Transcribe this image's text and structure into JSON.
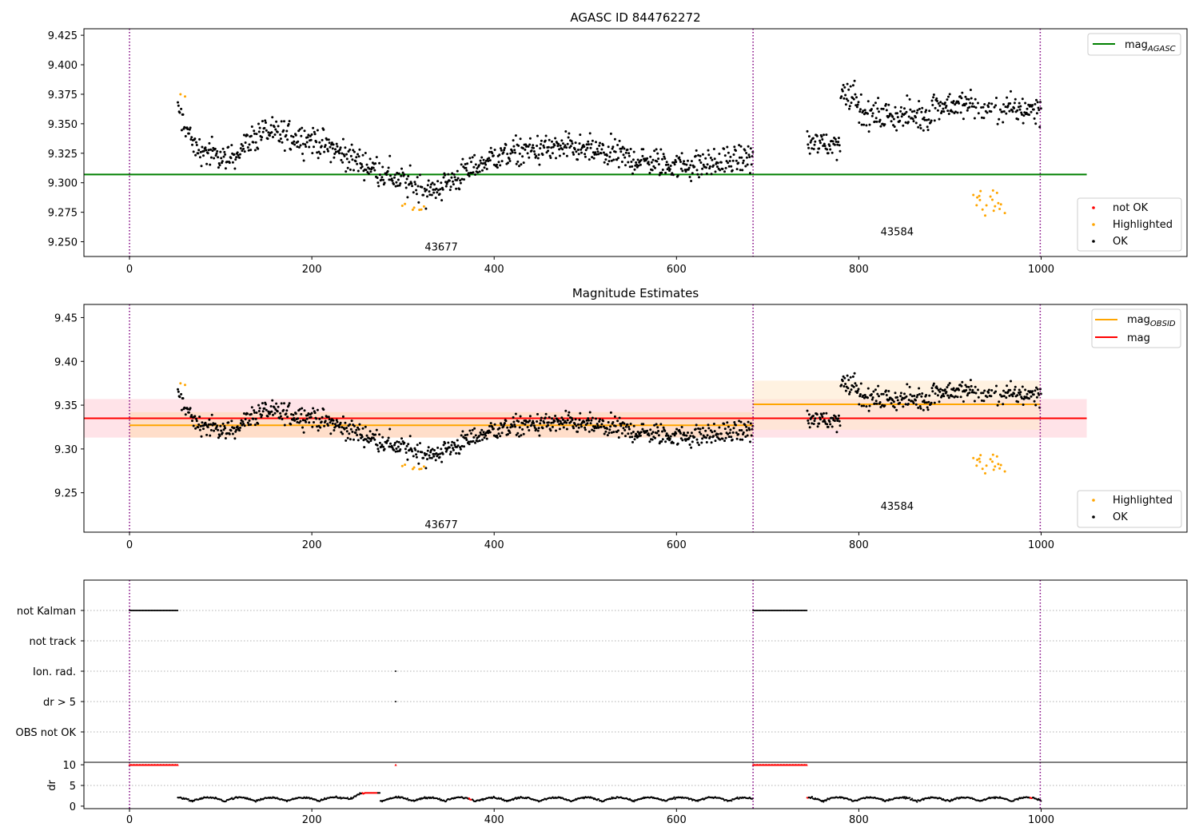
{
  "chart_data": [
    {
      "type": "scatter",
      "title": "AGASC ID 844762272",
      "xlim": [
        -50,
        1160
      ],
      "ylim": [
        9.2375,
        9.4305
      ],
      "xticks": [
        0,
        200,
        400,
        600,
        800,
        1000
      ],
      "xtick_labels": [
        "0",
        "200",
        "400",
        "600",
        "800",
        "1000"
      ],
      "yticks": [
        9.25,
        9.275,
        9.3,
        9.325,
        9.35,
        9.375,
        9.4,
        9.425
      ],
      "ytick_labels": [
        "9.250",
        "9.275",
        "9.300",
        "9.325",
        "9.350",
        "9.375",
        "9.400",
        "9.425"
      ],
      "obsid_boundaries": [
        0,
        684,
        999
      ],
      "obsid_labels": [
        {
          "text": "43677",
          "x": 342,
          "y": 9.246
        },
        {
          "text": "43584",
          "x": 842,
          "y": 9.259
        }
      ],
      "lines": [
        {
          "name": "mag",
          "name_sub": "AGASC",
          "y": 9.307,
          "x_range": [
            -50,
            1050
          ],
          "color": "#008000"
        }
      ],
      "legend_location": "upper right",
      "legend_scatter_location": "lower right",
      "legend_scatter": [
        {
          "name": "not OK",
          "color": "#ff0000"
        },
        {
          "name": "Highlighted",
          "color": "#ffa500"
        },
        {
          "name": "OK",
          "color": "#000000"
        }
      ],
      "series_rule": "OK and Highlighted points are generated from the segment mean-level curve below plus noise; Highlighted points are the low dips marked orange."
    },
    {
      "type": "scatter",
      "title": "Magnitude Estimates",
      "xlim": [
        -50,
        1160
      ],
      "ylim": [
        9.205,
        9.465
      ],
      "xticks": [
        0,
        200,
        400,
        600,
        800,
        1000
      ],
      "xtick_labels": [
        "0",
        "200",
        "400",
        "600",
        "800",
        "1000"
      ],
      "yticks": [
        9.25,
        9.3,
        9.35,
        9.4,
        9.45
      ],
      "ytick_labels": [
        "9.25",
        "9.30",
        "9.35",
        "9.40",
        "9.45"
      ],
      "obsid_boundaries": [
        0,
        684,
        999
      ],
      "obsid_labels": [
        {
          "text": "43677",
          "x": 342,
          "y": 9.214
        },
        {
          "text": "43584",
          "x": 842,
          "y": 9.235
        }
      ],
      "bands": [
        {
          "color": "#ffc0cb",
          "opacity": 0.45,
          "x_range": [
            -50,
            1050
          ],
          "y_range": [
            9.313,
            9.357
          ]
        },
        {
          "color": "#ffdab0",
          "opacity": 0.55,
          "x_range": [
            0,
            684
          ],
          "y_range": [
            9.313,
            9.342
          ]
        },
        {
          "color": "#ffe8c8",
          "opacity": 0.55,
          "x_range": [
            684,
            999
          ],
          "y_range": [
            9.322,
            9.378
          ]
        }
      ],
      "lines": [
        {
          "name": "mag",
          "name_sub": "OBSID",
          "color": "#ffa500",
          "segments": [
            {
              "x": [
                0,
                684
              ],
              "y": 9.327
            },
            {
              "x": [
                684,
                999
              ],
              "y": 9.351
            }
          ]
        },
        {
          "name": "mag",
          "color": "#ff0000",
          "segments": [
            {
              "x": [
                -50,
                1050
              ],
              "y": 9.335
            }
          ]
        }
      ],
      "legend_location": "upper right",
      "legend_scatter_location": "lower right",
      "legend_scatter": [
        {
          "name": "Highlighted",
          "color": "#ffa500"
        },
        {
          "name": "OK",
          "color": "#000000"
        }
      ]
    },
    {
      "type": "scatter",
      "title": "",
      "categories": [
        "not Kalman",
        "not track",
        "Ion. rad.",
        "dr > 5",
        "OBS not OK"
      ],
      "xlim": [
        -50,
        1160
      ],
      "flags": {
        "not Kalman": [
          [
            0,
            53
          ],
          [
            684,
            743
          ]
        ],
        "not track": [],
        "Ion. rad.": [
          [
            292,
            292
          ]
        ],
        "dr > 5": [
          [
            292,
            292
          ]
        ],
        "OBS not OK": []
      }
    },
    {
      "type": "line",
      "xlabel": "",
      "ylabel": "dr",
      "xlim": [
        -50,
        1160
      ],
      "ylim": [
        -0.6,
        10.6
      ],
      "xticks": [
        0,
        200,
        400,
        600,
        800,
        1000
      ],
      "xtick_labels": [
        "0",
        "200",
        "400",
        "600",
        "800",
        "1000"
      ],
      "yticks": [
        0,
        5,
        10
      ],
      "ytick_labels": [
        "0",
        "5",
        "10"
      ],
      "dr_clipped_value": 10,
      "dr_clipped_ranges": [
        [
          0,
          53
        ],
        [
          292,
          292
        ],
        [
          684,
          743
        ]
      ],
      "dr_red_ranges": [
        [
          255,
          272
        ],
        [
          372,
          376
        ],
        [
          743,
          745
        ],
        [
          988,
          990
        ]
      ],
      "dr_rule": "dr values between 0 and 3 pixels shown as small black points, gaps where data is missing"
    }
  ],
  "colors": {
    "ok": "#000000",
    "highlighted": "#ffa500",
    "not_ok": "#ff0000",
    "agasc_line": "#008000",
    "obsid_line": "#ffa500",
    "mag_line": "#ff0000",
    "boundary": "#800080",
    "grid": "#b0b0b0"
  }
}
